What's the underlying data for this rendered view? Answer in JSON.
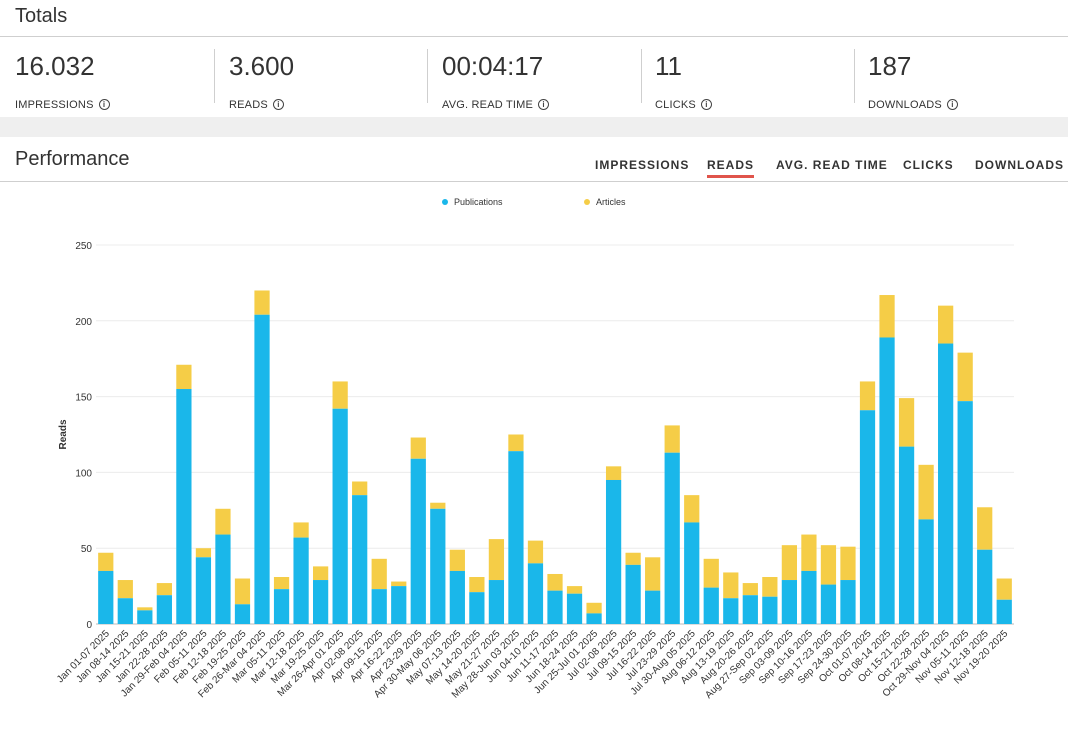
{
  "totals": {
    "title": "Totals",
    "stats": [
      {
        "value": "16.032",
        "label": "IMPRESSIONS"
      },
      {
        "value": "3.600",
        "label": "READS"
      },
      {
        "value": "00:04:17",
        "label": "AVG. READ TIME"
      },
      {
        "value": "11",
        "label": "CLICKS"
      },
      {
        "value": "187",
        "label": "DOWNLOADS"
      }
    ],
    "info_glyph": "i"
  },
  "performance": {
    "title": "Performance",
    "tabs": [
      "IMPRESSIONS",
      "READS",
      "AVG. READ TIME",
      "CLICKS",
      "DOWNLOADS"
    ],
    "active_tab": "READS"
  },
  "colors": {
    "publications": "#1ab7ea",
    "articles": "#f5cd47",
    "accent": "#e0544b"
  },
  "chart_data": {
    "type": "bar",
    "stacked": true,
    "title": "",
    "xlabel": "",
    "ylabel": "Reads",
    "ylim": [
      0,
      250
    ],
    "yticks": [
      0,
      50,
      100,
      150,
      200,
      250
    ],
    "legend_position": "top-center",
    "categories": [
      "Jan 01-07 2025",
      "Jan 08-14 2025",
      "Jan 15-21 2025",
      "Jan 22-28 2025",
      "Jan 29-Feb 04 2025",
      "Feb 05-11 2025",
      "Feb 12-18 2025",
      "Feb 19-25 2025",
      "Feb 26-Mar 04 2025",
      "Mar 05-11 2025",
      "Mar 12-18 2025",
      "Mar 19-25 2025",
      "Mar 26-Apr 01 2025",
      "Apr 02-08 2025",
      "Apr 09-15 2025",
      "Apr 16-22 2025",
      "Apr 23-29 2025",
      "Apr 30-May 06 2025",
      "May 07-13 2025",
      "May 14-20 2025",
      "May 21-27 2025",
      "May 28-Jun 03 2025",
      "Jun 04-10 2025",
      "Jun 11-17 2025",
      "Jun 18-24 2025",
      "Jun 25-Jul 01 2025",
      "Jul 02-08 2025",
      "Jul 09-15 2025",
      "Jul 16-22 2025",
      "Jul 23-29 2025",
      "Jul 30-Aug 05 2025",
      "Aug 06-12 2025",
      "Aug 13-19 2025",
      "Aug 20-26 2025",
      "Aug 27-Sep 02 2025",
      "Sep 03-09 2025",
      "Sep 10-16 2025",
      "Sep 17-23 2025",
      "Sep 24-30 2025",
      "Oct 01-07 2025",
      "Oct 08-14 2025",
      "Oct 15-21 2025",
      "Oct 22-28 2025",
      "Oct 29-Nov 04 2025",
      "Nov 05-11 2025",
      "Nov 12-18 2025",
      "Nov 19-20 2025"
    ],
    "series": [
      {
        "name": "Publications",
        "values": [
          35,
          17,
          9,
          19,
          155,
          44,
          59,
          13,
          204,
          23,
          57,
          29,
          142,
          85,
          23,
          25,
          109,
          76,
          35,
          21,
          29,
          114,
          40,
          22,
          20,
          7,
          95,
          39,
          22,
          113,
          67,
          24,
          17,
          19,
          18,
          29,
          35,
          26,
          29,
          141,
          189,
          117,
          69,
          185,
          147,
          49,
          16
        ]
      },
      {
        "name": "Articles",
        "values": [
          12,
          12,
          2,
          8,
          16,
          6,
          17,
          17,
          16,
          8,
          10,
          9,
          18,
          9,
          20,
          3,
          14,
          4,
          14,
          10,
          27,
          11,
          15,
          11,
          5,
          7,
          9,
          8,
          22,
          18,
          18,
          19,
          17,
          8,
          13,
          23,
          24,
          26,
          22,
          19,
          28,
          32,
          36,
          25,
          32,
          28,
          14
        ]
      }
    ]
  }
}
